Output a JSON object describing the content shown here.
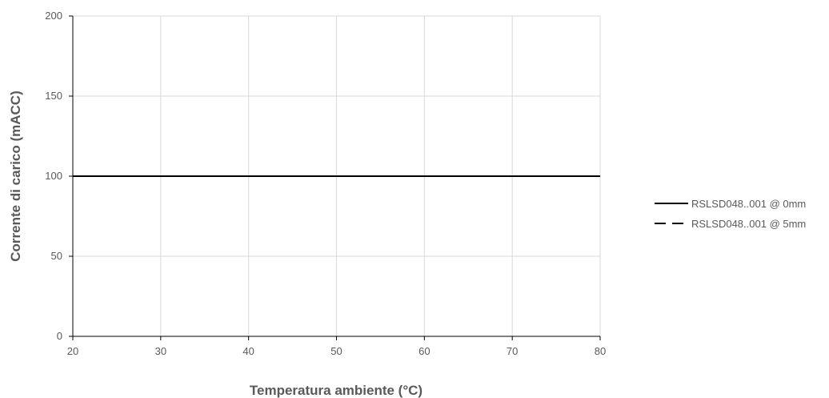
{
  "chart_data": {
    "type": "line",
    "title": "",
    "xlabel": "Temperatura ambiente (°C)",
    "ylabel": "Corrente di carico (mACC)",
    "xlim": [
      20,
      80
    ],
    "ylim": [
      0,
      200
    ],
    "xticks": [
      20,
      30,
      40,
      50,
      60,
      70,
      80
    ],
    "yticks": [
      0,
      50,
      100,
      150,
      200
    ],
    "grid": true,
    "legend_position": "right",
    "series": [
      {
        "name": "RSLSD048..001 @ 0mm",
        "style": "solid",
        "color": "#000000",
        "x": [
          20,
          80
        ],
        "y": [
          100,
          100
        ]
      },
      {
        "name": "RSLSD048..001 @ 5mm",
        "style": "dashed",
        "color": "#000000",
        "x": [
          20,
          80
        ],
        "y": [
          100,
          100
        ]
      }
    ]
  }
}
